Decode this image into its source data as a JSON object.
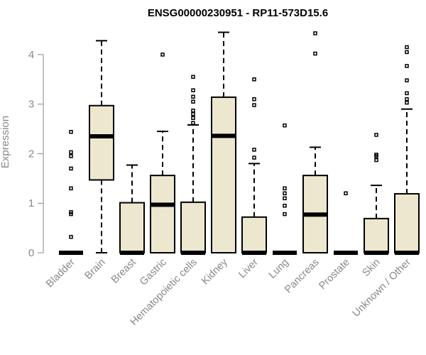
{
  "chart_data": {
    "type": "boxplot",
    "title": "ENSG00000230951 - RP11-573D15.6",
    "ylabel": "Expression",
    "xlabel": "",
    "ylim": [
      0,
      4.5
    ],
    "yticks": [
      0,
      1,
      2,
      3,
      4
    ],
    "grid": false,
    "box_color": "#ede7cf",
    "categories": [
      "Bladder",
      "Brain",
      "Breast",
      "Gastric",
      "Hematopoietic cells",
      "Kidney",
      "Liver",
      "Lung",
      "Pancreas",
      "Prostate",
      "Skin",
      "Unknown / Other"
    ],
    "boxes": [
      {
        "q1": 0,
        "median": 0,
        "q3": 0,
        "whisker_low": null,
        "whisker_high": null,
        "outliers": [
          0.32,
          0.78,
          0.82,
          1.3,
          1.7,
          1.95,
          2.03,
          2.44
        ]
      },
      {
        "q1": 1.47,
        "median": 2.35,
        "q3": 2.97,
        "whisker_low": 0,
        "whisker_high": 4.28,
        "outliers": []
      },
      {
        "q1": 0,
        "median": 0,
        "q3": 1.01,
        "whisker_low": 0,
        "whisker_high": 1.77,
        "outliers": []
      },
      {
        "q1": 0,
        "median": 0.97,
        "q3": 1.56,
        "whisker_low": 0,
        "whisker_high": 2.45,
        "outliers": [
          4.0
        ]
      },
      {
        "q1": 0,
        "median": 0,
        "q3": 1.02,
        "whisker_low": 0,
        "whisker_high": 2.58,
        "outliers": [
          2.62,
          2.72,
          2.8,
          2.87,
          3.05,
          3.15,
          3.28,
          3.55
        ]
      },
      {
        "q1": 0,
        "median": 2.36,
        "q3": 3.14,
        "whisker_low": 0,
        "whisker_high": 4.45,
        "outliers": []
      },
      {
        "q1": 0,
        "median": 0,
        "q3": 0.72,
        "whisker_low": 0,
        "whisker_high": 1.8,
        "outliers": [
          1.92,
          2.08,
          2.98,
          3.1,
          3.5
        ]
      },
      {
        "q1": 0,
        "median": 0,
        "q3": 0,
        "whisker_low": null,
        "whisker_high": null,
        "outliers": [
          0.78,
          0.95,
          1.1,
          1.2,
          1.3,
          2.57
        ]
      },
      {
        "q1": 0,
        "median": 0.77,
        "q3": 1.56,
        "whisker_low": 0,
        "whisker_high": 2.13,
        "outliers": [
          4.02,
          4.43
        ]
      },
      {
        "q1": 0,
        "median": 0,
        "q3": 0,
        "whisker_low": null,
        "whisker_high": null,
        "outliers": [
          1.2
        ]
      },
      {
        "q1": 0,
        "median": 0,
        "q3": 0.69,
        "whisker_low": 0,
        "whisker_high": 1.36,
        "outliers": [
          1.87,
          1.95,
          1.98,
          2.38
        ]
      },
      {
        "q1": 0,
        "median": 0,
        "q3": 1.19,
        "whisker_low": 0,
        "whisker_high": 2.9,
        "outliers": [
          3.03,
          3.1,
          3.22,
          3.48,
          3.77,
          4.05,
          4.15
        ]
      }
    ]
  }
}
